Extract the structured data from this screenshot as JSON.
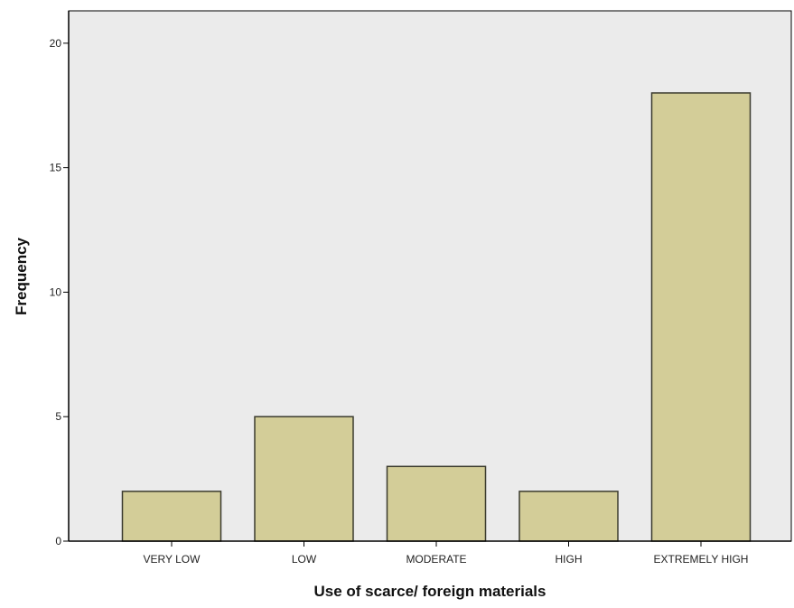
{
  "chart_data": {
    "type": "bar",
    "categories": [
      "VERY LOW",
      "LOW",
      "MODERATE",
      "HIGH",
      "EXTREMELY HIGH"
    ],
    "values": [
      2,
      5,
      3,
      2,
      18
    ],
    "xlabel": "Use of scarce/ foreign materials",
    "ylabel": "Frequency",
    "ylim": [
      0,
      21.3
    ],
    "yticks": [
      0,
      5,
      10,
      15,
      20
    ],
    "grid": false,
    "legend": "none",
    "colors": {
      "plot_background": "#ebebeb",
      "bar_fill": "#d3cd98",
      "bar_stroke": "#3b3b2e",
      "axis": "#000000"
    }
  }
}
